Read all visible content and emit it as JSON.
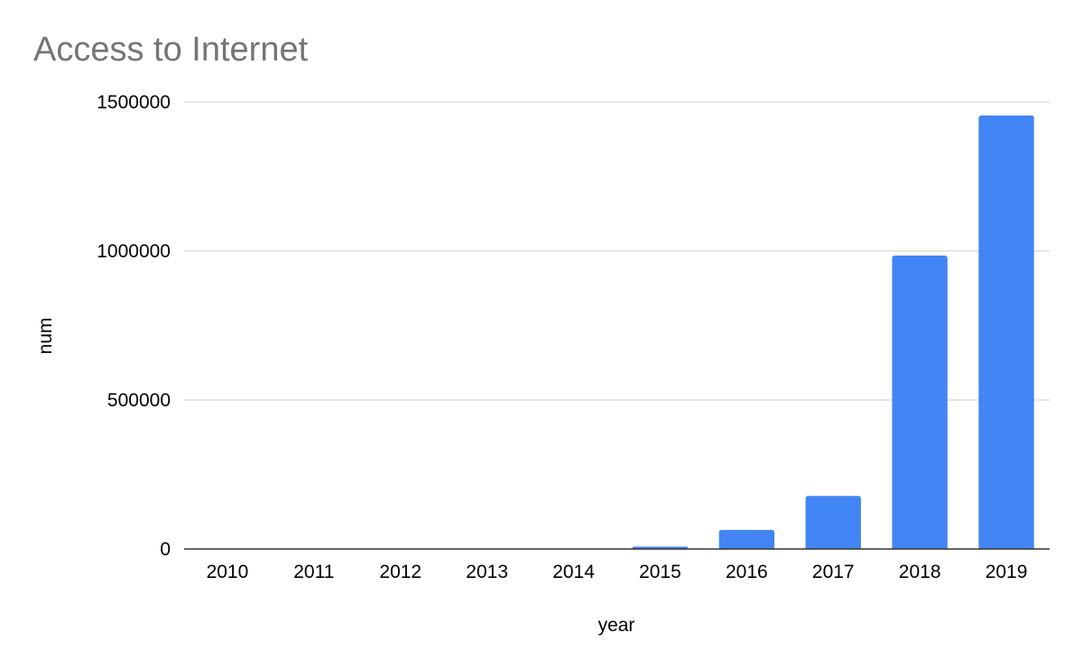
{
  "chart_data": {
    "type": "bar",
    "title": "Access to Internet",
    "xlabel": "year",
    "ylabel": "num",
    "categories": [
      "2010",
      "2011",
      "2012",
      "2013",
      "2014",
      "2015",
      "2016",
      "2017",
      "2018",
      "2019"
    ],
    "series": [
      {
        "values": [
          0,
          0,
          0,
          0,
          0,
          8000,
          64000,
          178000,
          985000,
          1455000
        ]
      }
    ],
    "ylim": [
      0,
      1500000
    ],
    "yticks": [
      0,
      500000,
      1000000,
      1500000
    ],
    "ytick_labels": [
      "0",
      "500000",
      "1000000",
      "1500000"
    ],
    "grid": true,
    "legend": "none",
    "colors": {
      "bar": "#4285f4",
      "grid": "#cccccc",
      "baseline": "#333333",
      "title": "#757575"
    }
  }
}
